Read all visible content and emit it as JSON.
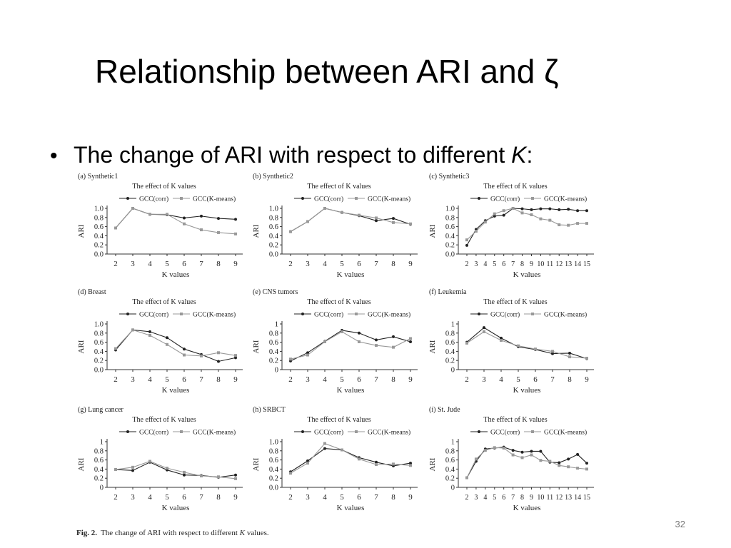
{
  "slide": {
    "title": "Relationship between ARI and ζ",
    "bullet": [
      "The change of ARI with respect to different ",
      "K",
      ":"
    ],
    "caption": [
      "Fig. 2.",
      "The change of ARI with respect to different ",
      "K",
      " values."
    ],
    "page_number": "32"
  },
  "chart_data": [
    {
      "type": "line",
      "panel_label": "(a) Synthetic1",
      "title": "The effect of K values",
      "x_label": "K values",
      "y_label": "ARI",
      "x": [
        2,
        3,
        4,
        5,
        6,
        7,
        8,
        9
      ],
      "xlim": [
        2,
        9
      ],
      "xticks": [
        2,
        3,
        4,
        5,
        6,
        7,
        8,
        9
      ],
      "ylim": [
        0,
        1
      ],
      "yticks": [
        {
          "value": 0,
          "label": "0.0"
        },
        0.2,
        0.4,
        0.6,
        0.8,
        {
          "value": 1,
          "label": "1.0"
        }
      ],
      "series": [
        {
          "name": "GCC(corr)",
          "color": "#222222",
          "values": [
            0.57,
            1.0,
            0.87,
            0.86,
            0.79,
            0.83,
            0.78,
            0.76
          ]
        },
        {
          "name": "GCC(K-means)",
          "color": "#999999",
          "values": [
            0.57,
            1.0,
            0.87,
            0.87,
            0.66,
            0.53,
            0.47,
            0.44
          ]
        }
      ]
    },
    {
      "type": "line",
      "panel_label": "(b) Synthetic2",
      "title": "The effect of K values",
      "x_label": "K values",
      "y_label": "ARI",
      "x": [
        2,
        3,
        4,
        5,
        6,
        7,
        8,
        9
      ],
      "xlim": [
        2,
        9
      ],
      "xticks": [
        2,
        3,
        4,
        5,
        6,
        7,
        8,
        9
      ],
      "ylim": [
        0,
        1
      ],
      "yticks": [
        {
          "value": 0,
          "label": "0.0"
        },
        0.2,
        0.4,
        0.6,
        0.8,
        {
          "value": 1,
          "label": "1.0"
        }
      ],
      "series": [
        {
          "name": "GCC(corr)",
          "color": "#222222",
          "values": [
            0.49,
            0.71,
            1.0,
            0.91,
            0.84,
            0.73,
            0.78,
            0.65
          ]
        },
        {
          "name": "GCC(K-means)",
          "color": "#999999",
          "values": [
            0.49,
            0.71,
            1.0,
            0.91,
            0.85,
            0.79,
            0.69,
            0.66
          ]
        }
      ]
    },
    {
      "type": "line",
      "panel_label": "(c) Synthetic3",
      "title": "The effect of K values",
      "x_label": "K values",
      "y_label": "ARI",
      "x": [
        2,
        3,
        4,
        5,
        6,
        7,
        8,
        9,
        10,
        11,
        12,
        13,
        14,
        15
      ],
      "xlim": [
        2,
        15
      ],
      "xticks": [
        2,
        3,
        4,
        5,
        6,
        7,
        8,
        9,
        10,
        11,
        12,
        13,
        14,
        15
      ],
      "ylim": [
        0,
        1
      ],
      "yticks": [
        {
          "value": 0,
          "label": "0.0"
        },
        0.2,
        0.4,
        0.6,
        0.8,
        {
          "value": 1,
          "label": "1.0"
        }
      ],
      "series": [
        {
          "name": "GCC(corr)",
          "color": "#222222",
          "values": [
            0.19,
            0.54,
            0.73,
            0.83,
            0.85,
            1.0,
            0.99,
            0.97,
            0.99,
            0.99,
            0.97,
            0.98,
            0.95,
            0.95
          ]
        },
        {
          "name": "GCC(K-means)",
          "color": "#999999",
          "values": [
            0.31,
            0.5,
            0.7,
            0.88,
            0.95,
            1.0,
            0.9,
            0.86,
            0.77,
            0.74,
            0.64,
            0.63,
            0.67,
            0.67
          ]
        }
      ]
    },
    {
      "type": "line",
      "panel_label": "(d) Breast",
      "title": "The effect of K values",
      "x_label": "K values",
      "y_label": "ARI",
      "x": [
        2,
        3,
        4,
        5,
        6,
        7,
        8,
        9
      ],
      "xlim": [
        2,
        9
      ],
      "xticks": [
        2,
        3,
        4,
        5,
        6,
        7,
        8,
        9
      ],
      "ylim": [
        0,
        1
      ],
      "yticks": [
        {
          "value": 0,
          "label": "0.0"
        },
        0.2,
        0.4,
        0.6,
        0.8,
        {
          "value": 1,
          "label": "1.0"
        }
      ],
      "series": [
        {
          "name": "GCC(corr)",
          "color": "#222222",
          "values": [
            0.43,
            0.87,
            0.83,
            0.7,
            0.45,
            0.33,
            0.18,
            0.26
          ]
        },
        {
          "name": "GCC(K-means)",
          "color": "#999999",
          "values": [
            0.46,
            0.87,
            0.75,
            0.55,
            0.32,
            0.3,
            0.37,
            0.31
          ]
        }
      ]
    },
    {
      "type": "line",
      "panel_label": "(e) CNS tumors",
      "title": "The effect of K values",
      "x_label": "K values",
      "y_label": "ARI",
      "x": [
        2,
        3,
        4,
        5,
        6,
        7,
        8,
        9
      ],
      "xlim": [
        2,
        9
      ],
      "xticks": [
        2,
        3,
        4,
        5,
        6,
        7,
        8,
        9
      ],
      "ylim": [
        0,
        1
      ],
      "yticks": [
        0,
        0.2,
        0.4,
        0.6,
        0.8,
        1
      ],
      "series": [
        {
          "name": "GCC(corr)",
          "color": "#222222",
          "values": [
            0.19,
            0.37,
            0.62,
            0.86,
            0.8,
            0.65,
            0.72,
            0.61
          ]
        },
        {
          "name": "GCC(K-means)",
          "color": "#999999",
          "values": [
            0.23,
            0.32,
            0.61,
            0.83,
            0.61,
            0.53,
            0.49,
            0.68
          ]
        }
      ]
    },
    {
      "type": "line",
      "panel_label": "(f) Leukemia",
      "title": "The effect of K values",
      "x_label": "K values",
      "y_label": "ARI",
      "x": [
        2,
        3,
        4,
        5,
        6,
        7,
        8,
        9
      ],
      "xlim": [
        2,
        9
      ],
      "xticks": [
        2,
        3,
        4,
        5,
        6,
        7,
        8,
        9
      ],
      "ylim": [
        0,
        1
      ],
      "yticks": [
        0,
        0.2,
        0.4,
        0.6,
        0.8,
        1
      ],
      "series": [
        {
          "name": "GCC(corr)",
          "color": "#222222",
          "values": [
            0.6,
            0.92,
            0.69,
            0.5,
            0.44,
            0.35,
            0.36,
            0.24
          ]
        },
        {
          "name": "GCC(K-means)",
          "color": "#999999",
          "values": [
            0.58,
            0.83,
            0.64,
            0.52,
            0.45,
            0.4,
            0.28,
            0.25
          ]
        }
      ]
    },
    {
      "type": "line",
      "panel_label": "(g) Lung cancer",
      "title": "The effect of K values",
      "x_label": "K values",
      "y_label": "ARI",
      "x": [
        2,
        3,
        4,
        5,
        6,
        7,
        8,
        9
      ],
      "xlim": [
        2,
        9
      ],
      "xticks": [
        2,
        3,
        4,
        5,
        6,
        7,
        8,
        9
      ],
      "ylim": [
        0,
        1
      ],
      "yticks": [
        0,
        0.2,
        0.4,
        0.6,
        0.8,
        1
      ],
      "series": [
        {
          "name": "GCC(corr)",
          "color": "#222222",
          "values": [
            0.39,
            0.37,
            0.55,
            0.38,
            0.27,
            0.26,
            0.22,
            0.27
          ]
        },
        {
          "name": "GCC(K-means)",
          "color": "#999999",
          "values": [
            0.39,
            0.44,
            0.57,
            0.42,
            0.33,
            0.25,
            0.23,
            0.19
          ]
        }
      ]
    },
    {
      "type": "line",
      "panel_label": "(h) SRBCT",
      "title": "The effect of K values",
      "x_label": "K values",
      "y_label": "ARI",
      "x": [
        2,
        3,
        4,
        5,
        6,
        7,
        8,
        9
      ],
      "xlim": [
        2,
        9
      ],
      "xticks": [
        2,
        3,
        4,
        5,
        6,
        7,
        8,
        9
      ],
      "ylim": [
        0,
        1
      ],
      "yticks": [
        {
          "value": 0,
          "label": "0.0"
        },
        0.2,
        0.4,
        0.6,
        0.8,
        {
          "value": 1,
          "label": "1.0"
        }
      ],
      "series": [
        {
          "name": "GCC(corr)",
          "color": "#222222",
          "values": [
            0.34,
            0.58,
            0.85,
            0.82,
            0.65,
            0.55,
            0.47,
            0.53
          ]
        },
        {
          "name": "GCC(K-means)",
          "color": "#999999",
          "values": [
            0.31,
            0.53,
            0.96,
            0.82,
            0.62,
            0.5,
            0.51,
            0.48
          ]
        }
      ]
    },
    {
      "type": "line",
      "panel_label": "(i) St. Jude",
      "title": "The effect of K values",
      "x_label": "K values",
      "y_label": "ARI",
      "x": [
        2,
        3,
        4,
        5,
        6,
        7,
        8,
        9,
        10,
        11,
        12,
        13,
        14,
        15
      ],
      "xlim": [
        2,
        15
      ],
      "xticks": [
        2,
        3,
        4,
        5,
        6,
        7,
        8,
        9,
        10,
        11,
        12,
        13,
        14,
        15
      ],
      "ylim": [
        0,
        1
      ],
      "yticks": [
        0,
        0.2,
        0.4,
        0.6,
        0.8,
        1
      ],
      "series": [
        {
          "name": "GCC(corr)",
          "color": "#222222",
          "values": [
            0.21,
            0.57,
            0.84,
            0.86,
            0.88,
            0.81,
            0.77,
            0.79,
            0.79,
            0.55,
            0.54,
            0.62,
            0.72,
            0.53
          ]
        },
        {
          "name": "GCC(K-means)",
          "color": "#999999",
          "values": [
            0.21,
            0.62,
            0.81,
            0.87,
            0.86,
            0.71,
            0.65,
            0.71,
            0.59,
            0.57,
            0.48,
            0.45,
            0.42,
            0.4
          ]
        }
      ]
    }
  ]
}
